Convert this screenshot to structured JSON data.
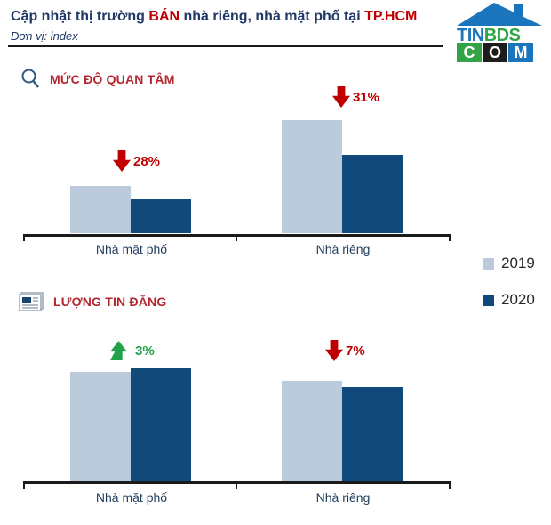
{
  "header": {
    "title_parts": [
      "Cập nhật thị trường ",
      "BÁN",
      " nhà riêng, nhà mặt phố tại ",
      "TP.HCM"
    ],
    "subtitle": "Đơn vị: index"
  },
  "logo": {
    "line1_parts": [
      "TIN",
      "BDS"
    ],
    "line2_letters": [
      "C",
      "O",
      "M"
    ]
  },
  "colors": {
    "title_navy": "#1f3864",
    "accent_red": "#c00000",
    "section_header_red": "#b12730",
    "bar_2019": "#bccbdc",
    "bar_2020": "#11497b",
    "positive_green": "#22a14b",
    "logo_blue": "#1b75bc",
    "logo_green": "#33a348"
  },
  "chart_data": [
    {
      "type": "bar",
      "title": "MỨC ĐỘ QUAN TÂM",
      "icon": "search-icon",
      "unit": "index",
      "categories": [
        "Nhà mặt phố",
        "Nhà riêng"
      ],
      "series": [
        {
          "name": "2019",
          "values": [
            42,
            100
          ]
        },
        {
          "name": "2020",
          "values": [
            30,
            69
          ]
        }
      ],
      "annotations": [
        {
          "category": "Nhà mặt phố",
          "direction": "down",
          "change": "28%"
        },
        {
          "category": "Nhà riêng",
          "direction": "down",
          "change": "31%"
        }
      ],
      "legend_position": "right",
      "grid": false,
      "value_axis_hidden": true
    },
    {
      "type": "bar",
      "title": "LƯỢNG TIN ĐĂNG",
      "icon": "newspaper-icon",
      "unit": "index",
      "categories": [
        "Nhà mặt phố",
        "Nhà riêng"
      ],
      "series": [
        {
          "name": "2019",
          "values": [
            97,
            89
          ]
        },
        {
          "name": "2020",
          "values": [
            100,
            83
          ]
        }
      ],
      "annotations": [
        {
          "category": "Nhà mặt phố",
          "direction": "up",
          "change": "3%"
        },
        {
          "category": "Nhà riêng",
          "direction": "down",
          "change": "7%"
        }
      ],
      "legend_position": "right",
      "grid": false,
      "value_axis_hidden": true
    }
  ]
}
